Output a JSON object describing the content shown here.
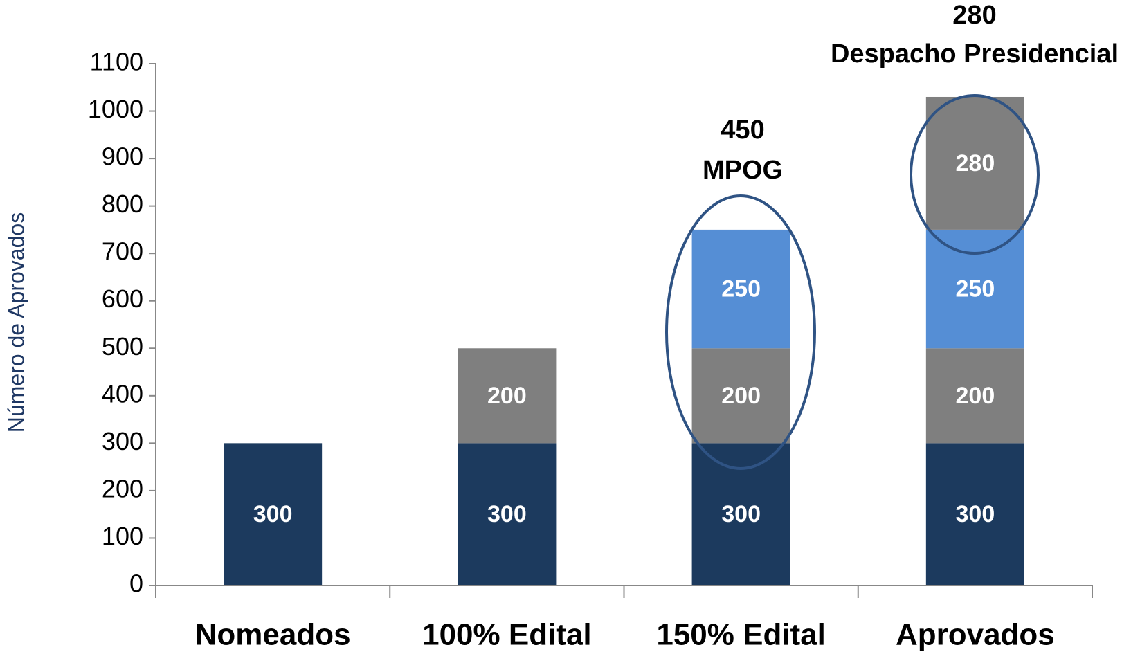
{
  "chart_data": {
    "type": "bar",
    "stacked": true,
    "y_label": "Número de Aprovados",
    "categories": [
      "Nomeados",
      "100% Edital",
      "150% Edital",
      "Aprovados"
    ],
    "series": [
      {
        "color": "#1c3a5e",
        "values": [
          300,
          300,
          300,
          300
        ]
      },
      {
        "color": "#7f7f7f",
        "values": [
          null,
          200,
          200,
          200
        ]
      },
      {
        "color": "#558ed5",
        "values": [
          null,
          null,
          250,
          250
        ]
      },
      {
        "color": "#7f7f7f",
        "values": [
          null,
          null,
          null,
          280
        ]
      }
    ],
    "annotations": [
      {
        "value": 450,
        "text": "MPOG"
      },
      {
        "value": 280,
        "text": "Despacho Presidencial"
      }
    ],
    "ylim": [
      0,
      1100
    ],
    "yticks": [
      0,
      100,
      200,
      300,
      400,
      500,
      600,
      700,
      800,
      900,
      1000,
      1100
    ],
    "grid": false
  }
}
